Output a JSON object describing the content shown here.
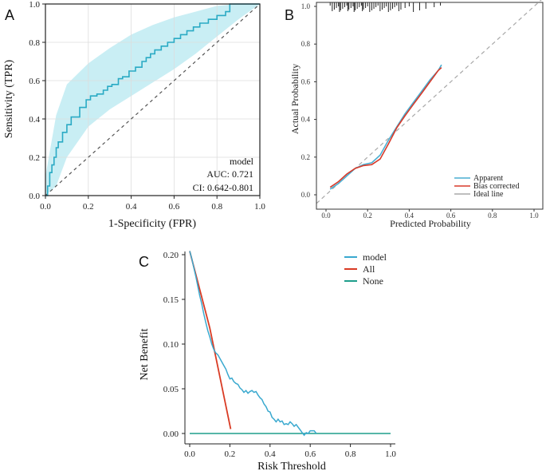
{
  "chart_data": [
    {
      "panel": "A",
      "type": "line",
      "title": "",
      "xlabel": "1-Specificity (FPR)",
      "ylabel": "Sensitivity (TPR)",
      "xlim": [
        0,
        1
      ],
      "ylim": [
        0,
        1
      ],
      "xticks": [
        "0.0",
        "0.2",
        "0.4",
        "0.6",
        "0.8",
        "1.0"
      ],
      "yticks": [
        "0.0",
        "0.2",
        "0.4",
        "0.6",
        "0.8",
        "1.0"
      ],
      "colors": {
        "roc": "#2aaac4",
        "band": "#c9eef4",
        "diagonal": "#555555"
      },
      "annotations": {
        "model": "model",
        "auc": "AUC: 0.721",
        "ci": "CI: 0.642-0.801"
      },
      "series": [
        {
          "name": "ROC",
          "x": [
            0,
            0.01,
            0.01,
            0.02,
            0.02,
            0.03,
            0.03,
            0.04,
            0.04,
            0.05,
            0.05,
            0.06,
            0.06,
            0.08,
            0.08,
            0.1,
            0.1,
            0.12,
            0.12,
            0.16,
            0.16,
            0.19,
            0.19,
            0.21,
            0.21,
            0.24,
            0.24,
            0.27,
            0.27,
            0.29,
            0.29,
            0.31,
            0.31,
            0.34,
            0.34,
            0.36,
            0.36,
            0.39,
            0.39,
            0.42,
            0.42,
            0.45,
            0.45,
            0.47,
            0.47,
            0.49,
            0.49,
            0.51,
            0.51,
            0.54,
            0.54,
            0.57,
            0.57,
            0.6,
            0.6,
            0.63,
            0.63,
            0.66,
            0.66,
            0.69,
            0.69,
            0.72,
            0.72,
            0.76,
            0.76,
            0.8,
            0.8,
            0.84,
            0.84,
            0.86,
            0.86,
            0.88,
            0.88,
            1.0
          ],
          "y": [
            0,
            0,
            0.05,
            0.05,
            0.12,
            0.12,
            0.16,
            0.16,
            0.2,
            0.2,
            0.25,
            0.25,
            0.28,
            0.28,
            0.33,
            0.33,
            0.37,
            0.37,
            0.41,
            0.41,
            0.46,
            0.46,
            0.5,
            0.5,
            0.52,
            0.52,
            0.53,
            0.53,
            0.55,
            0.55,
            0.57,
            0.57,
            0.58,
            0.58,
            0.61,
            0.61,
            0.62,
            0.62,
            0.65,
            0.65,
            0.67,
            0.67,
            0.7,
            0.7,
            0.72,
            0.72,
            0.74,
            0.74,
            0.76,
            0.76,
            0.78,
            0.78,
            0.8,
            0.8,
            0.82,
            0.82,
            0.84,
            0.84,
            0.86,
            0.86,
            0.88,
            0.88,
            0.9,
            0.9,
            0.92,
            0.92,
            0.94,
            0.94,
            0.96,
            0.96,
            1.0,
            1.0,
            1.0,
            1.0
          ]
        },
        {
          "name": "CI band upper",
          "x": [
            0,
            0.05,
            0.1,
            0.2,
            0.3,
            0.4,
            0.5,
            0.6,
            0.7,
            0.8,
            0.9,
            1.0
          ],
          "y": [
            0.1,
            0.42,
            0.58,
            0.69,
            0.77,
            0.84,
            0.89,
            0.93,
            0.96,
            0.99,
            1.0,
            1.0
          ]
        },
        {
          "name": "CI band lower",
          "x": [
            0,
            0.05,
            0.1,
            0.2,
            0.3,
            0.4,
            0.5,
            0.6,
            0.7,
            0.8,
            0.9,
            1.0
          ],
          "y": [
            0,
            0.05,
            0.2,
            0.36,
            0.45,
            0.52,
            0.59,
            0.66,
            0.74,
            0.83,
            0.92,
            1.0
          ]
        },
        {
          "name": "Reference",
          "x": [
            0,
            1
          ],
          "y": [
            0,
            1
          ]
        }
      ]
    },
    {
      "panel": "B",
      "type": "line",
      "title": "",
      "xlabel": "Predicted Probability",
      "ylabel": "Actual Probability",
      "xlim": [
        0,
        1
      ],
      "ylim": [
        0,
        1
      ],
      "xticks": [
        "0.0",
        "0.2",
        "0.4",
        "0.6",
        "0.8",
        "1.0"
      ],
      "yticks": [
        "0.0",
        "0.2",
        "0.4",
        "0.6",
        "0.8",
        "1.0"
      ],
      "legend": [
        "Apparent",
        "Bias corrected",
        "Ideal line"
      ],
      "legend_position": "bottom-right",
      "colors": {
        "apparent": "#4aaed1",
        "bias": "#d83a2a",
        "ideal": "#a8a8a8",
        "rug": "#222222"
      },
      "series": [
        {
          "name": "Apparent",
          "x": [
            0.02,
            0.06,
            0.1,
            0.14,
            0.18,
            0.22,
            0.26,
            0.3,
            0.34,
            0.38,
            0.42,
            0.46,
            0.5,
            0.54,
            0.555
          ],
          "y": [
            0.03,
            0.06,
            0.1,
            0.14,
            0.16,
            0.17,
            0.21,
            0.29,
            0.36,
            0.43,
            0.49,
            0.55,
            0.61,
            0.66,
            0.69
          ]
        },
        {
          "name": "Bias corrected",
          "x": [
            0.02,
            0.06,
            0.1,
            0.14,
            0.18,
            0.22,
            0.26,
            0.3,
            0.34,
            0.38,
            0.42,
            0.46,
            0.5,
            0.54,
            0.555
          ],
          "y": [
            0.04,
            0.07,
            0.11,
            0.14,
            0.155,
            0.16,
            0.19,
            0.27,
            0.355,
            0.42,
            0.48,
            0.54,
            0.6,
            0.66,
            0.675
          ]
        },
        {
          "name": "Ideal line",
          "x": [
            0,
            1
          ],
          "y": [
            0,
            1
          ]
        }
      ],
      "rug_x": [
        0.02,
        0.03,
        0.04,
        0.05,
        0.06,
        0.065,
        0.07,
        0.08,
        0.09,
        0.1,
        0.105,
        0.11,
        0.12,
        0.13,
        0.135,
        0.14,
        0.15,
        0.16,
        0.17,
        0.175,
        0.18,
        0.19,
        0.2,
        0.21,
        0.22,
        0.23,
        0.24,
        0.25,
        0.26,
        0.27,
        0.28,
        0.29,
        0.3,
        0.31,
        0.32,
        0.33,
        0.34,
        0.35,
        0.36,
        0.38,
        0.4,
        0.42,
        0.45,
        0.48,
        0.52,
        0.55
      ]
    },
    {
      "panel": "C",
      "type": "line",
      "title": "",
      "xlabel": "Risk Threshold",
      "ylabel": "Net Benefit",
      "xlim": [
        0,
        1
      ],
      "ylim": [
        -0.01,
        0.21
      ],
      "xticks": [
        "0.0",
        "0.2",
        "0.4",
        "0.6",
        "0.8",
        "1.0"
      ],
      "yticks": [
        "0.00",
        "0.05",
        "0.10",
        "0.15",
        "0.20"
      ],
      "legend": [
        "model",
        "All",
        "None"
      ],
      "legend_position": "top-right",
      "colors": {
        "model": "#3aa9cf",
        "all": "#d93b24",
        "none": "#1e9e8c"
      },
      "series": [
        {
          "name": "model",
          "x": [
            0,
            0.01,
            0.02,
            0.03,
            0.04,
            0.05,
            0.06,
            0.07,
            0.08,
            0.09,
            0.1,
            0.11,
            0.12,
            0.13,
            0.14,
            0.15,
            0.16,
            0.17,
            0.18,
            0.19,
            0.2,
            0.21,
            0.22,
            0.23,
            0.24,
            0.25,
            0.26,
            0.27,
            0.28,
            0.29,
            0.3,
            0.31,
            0.32,
            0.33,
            0.34,
            0.35,
            0.36,
            0.37,
            0.38,
            0.39,
            0.4,
            0.41,
            0.42,
            0.43,
            0.44,
            0.45,
            0.46,
            0.47,
            0.48,
            0.49,
            0.5,
            0.51,
            0.52,
            0.53,
            0.54,
            0.55,
            0.56,
            0.57,
            0.58,
            0.59,
            0.6,
            0.61,
            0.62,
            0.63
          ],
          "y": [
            0.204,
            0.196,
            0.186,
            0.176,
            0.165,
            0.154,
            0.145,
            0.134,
            0.124,
            0.115,
            0.108,
            0.1,
            0.094,
            0.09,
            0.088,
            0.084,
            0.08,
            0.076,
            0.072,
            0.066,
            0.061,
            0.062,
            0.058,
            0.056,
            0.055,
            0.051,
            0.049,
            0.046,
            0.048,
            0.045,
            0.047,
            0.048,
            0.046,
            0.047,
            0.043,
            0.04,
            0.038,
            0.033,
            0.03,
            0.025,
            0.024,
            0.018,
            0.016,
            0.013,
            0.016,
            0.013,
            0.014,
            0.01,
            0.011,
            0.01,
            0.013,
            0.011,
            0.008,
            0.01,
            0.007,
            0.004,
            0.001,
            -0.002,
            0.001,
            0.0,
            0.003,
            0.003,
            0.003,
            0.0
          ]
        },
        {
          "name": "All",
          "x": [
            0,
            0.1,
            0.204
          ],
          "y": [
            0.204,
            0.118,
            0.005
          ]
        },
        {
          "name": "None",
          "x": [
            0,
            1
          ],
          "y": [
            0,
            0
          ]
        }
      ]
    }
  ]
}
